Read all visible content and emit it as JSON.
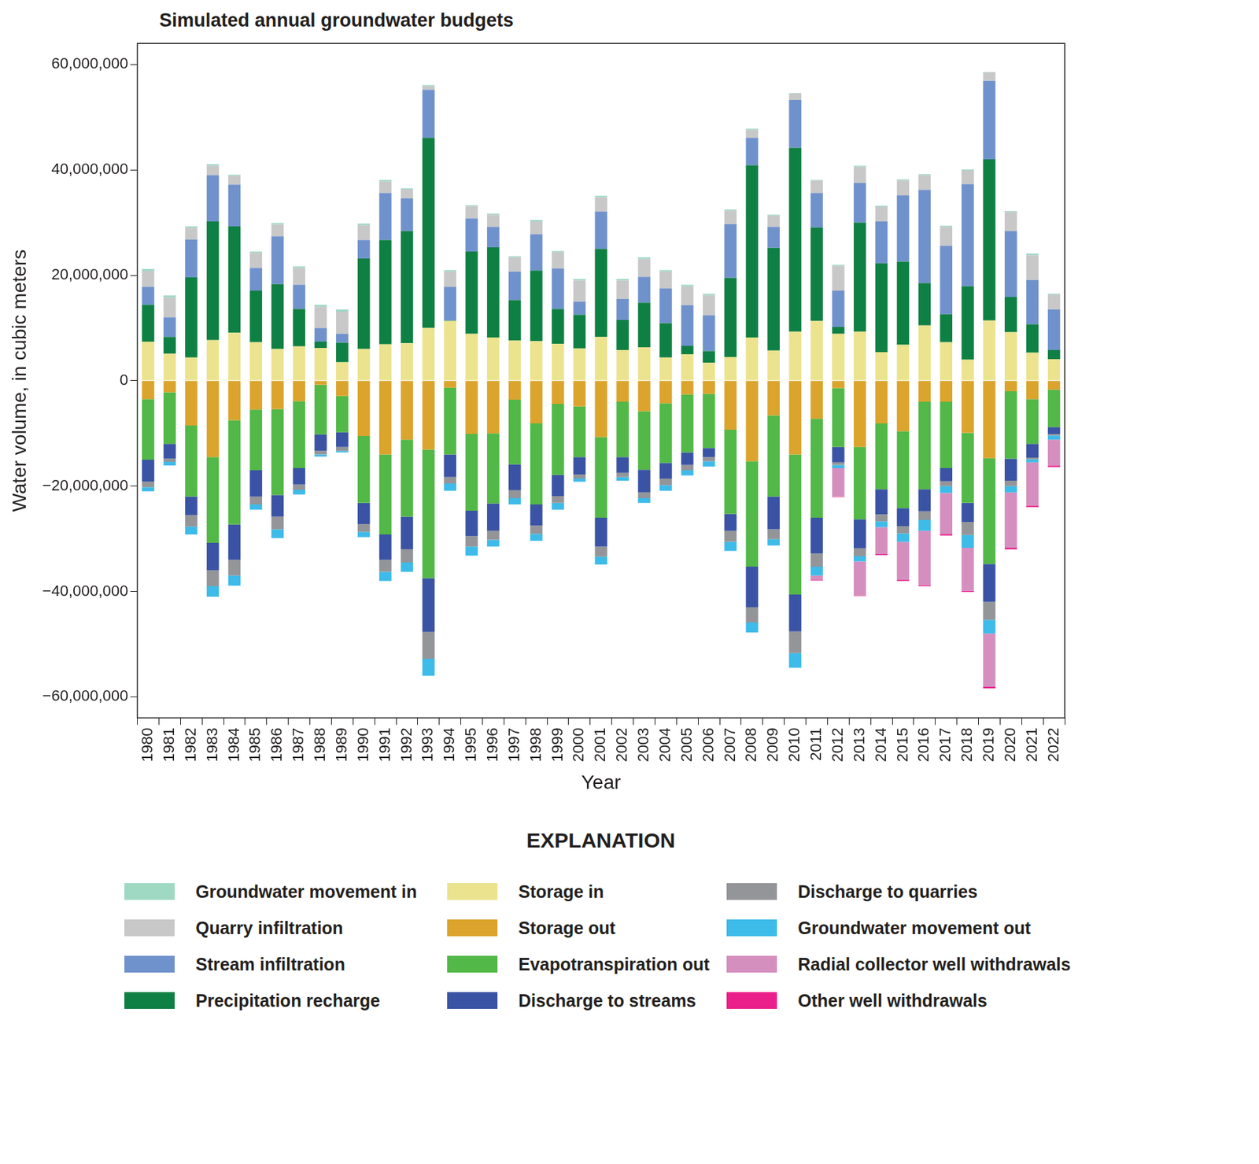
{
  "chart_data": {
    "type": "bar",
    "title": "Simulated annual groundwater budgets",
    "x_label": "Year",
    "y_label": "Water volume, in cubic meters",
    "legend_title": "EXPLANATION",
    "legend": "bottom",
    "stacked": true,
    "grid": false,
    "ylim": [
      -64000000,
      64000000
    ],
    "yticks": [
      {
        "value": -60000000,
        "label": "−60,000,000"
      },
      {
        "value": -40000000,
        "label": "−40,000,000"
      },
      {
        "value": -20000000,
        "label": "−20,000,000"
      },
      0,
      {
        "value": 20000000,
        "label": "20,000,000"
      },
      {
        "value": 40000000,
        "label": "40,000,000"
      },
      {
        "value": 60000000,
        "label": "60,000,000"
      }
    ],
    "categories": [
      "1980",
      "1981",
      "1982",
      "1983",
      "1984",
      "1985",
      "1986",
      "1987",
      "1988",
      "1989",
      "1990",
      "1991",
      "1992",
      "1993",
      "1994",
      "1995",
      "1996",
      "1997",
      "1998",
      "1999",
      "2000",
      "2001",
      "2002",
      "2003",
      "2004",
      "2005",
      "2006",
      "2007",
      "2008",
      "2009",
      "2010",
      "2011",
      "2012",
      "2013",
      "2014",
      "2015",
      "2016",
      "2017",
      "2018",
      "2019",
      "2020",
      "2021",
      "2022"
    ],
    "series": [
      {
        "name": "Groundwater movement in",
        "color": "#9fd9c3",
        "values": [
          400000,
          400000,
          300000,
          300000,
          200000,
          300000,
          300000,
          300000,
          400000,
          400000,
          300000,
          300000,
          200000,
          200000,
          300000,
          200000,
          200000,
          200000,
          300000,
          200000,
          300000,
          300000,
          300000,
          300000,
          300000,
          300000,
          300000,
          200000,
          200000,
          200000,
          100000,
          100000,
          200000,
          200000,
          200000,
          200000,
          200000,
          200000,
          200000,
          100000,
          200000,
          300000,
          200000
        ]
      },
      {
        "name": "Quarry infiltration",
        "color": "#c8c8c8",
        "values": [
          3000000,
          3800000,
          2200000,
          1800000,
          1700000,
          2800000,
          2200000,
          3200000,
          4000000,
          4200000,
          2800000,
          2200000,
          1700000,
          700000,
          2900000,
          2300000,
          2300000,
          2700000,
          2400000,
          3100000,
          4000000,
          2700000,
          3500000,
          3400000,
          3200000,
          3600000,
          3800000,
          2600000,
          1500000,
          2100000,
          1200000,
          2400000,
          4700000,
          3100000,
          2800000,
          2800000,
          2800000,
          3600000,
          2600000,
          1600000,
          3600000,
          4700000,
          2800000
        ]
      },
      {
        "name": "Stream infiltration",
        "color": "#7092cc",
        "values": [
          3400000,
          3700000,
          7200000,
          8800000,
          7900000,
          4300000,
          9100000,
          4600000,
          2600000,
          1700000,
          3500000,
          8900000,
          6200000,
          9100000,
          6400000,
          6300000,
          3900000,
          5400000,
          6900000,
          7700000,
          2500000,
          7100000,
          4000000,
          4900000,
          6600000,
          7700000,
          6800000,
          10200000,
          5200000,
          4000000,
          9100000,
          6500000,
          6900000,
          7500000,
          7900000,
          12600000,
          17700000,
          13000000,
          19400000,
          14900000,
          12500000,
          8400000,
          7700000
        ]
      },
      {
        "name": "Precipitation recharge",
        "color": "#0f8043",
        "values": [
          7000000,
          3200000,
          15200000,
          22500000,
          20200000,
          9800000,
          12300000,
          7100000,
          1200000,
          3700000,
          17200000,
          19800000,
          21300000,
          36100000,
          100000,
          15600000,
          17100000,
          7700000,
          13400000,
          6600000,
          6400000,
          16700000,
          5700000,
          8500000,
          6500000,
          1600000,
          2200000,
          15000000,
          32700000,
          19500000,
          34900000,
          17800000,
          1300000,
          20700000,
          16900000,
          15800000,
          8000000,
          5300000,
          13900000,
          30600000,
          6700000,
          5400000,
          1700000
        ]
      },
      {
        "name": "Storage in",
        "color": "#ebe38e",
        "values": [
          7400000,
          5100000,
          4400000,
          7700000,
          9100000,
          7300000,
          6000000,
          6500000,
          6200000,
          3500000,
          6000000,
          6900000,
          7100000,
          10000000,
          11300000,
          8900000,
          8200000,
          7600000,
          7500000,
          7000000,
          6100000,
          8300000,
          5800000,
          6300000,
          4400000,
          5000000,
          3400000,
          4500000,
          8200000,
          5700000,
          9300000,
          11300000,
          8900000,
          9300000,
          5400000,
          6800000,
          10500000,
          7300000,
          4000000,
          11400000,
          9200000,
          5300000,
          4100000
        ]
      },
      {
        "name": "Storage out",
        "color": "#dba42c",
        "values": [
          -3500000,
          -2200000,
          -8500000,
          -14500000,
          -7500000,
          -5500000,
          -5400000,
          -3900000,
          -800000,
          -2900000,
          -10500000,
          -14000000,
          -11200000,
          -13100000,
          -1300000,
          -10100000,
          -10000000,
          -3600000,
          -8100000,
          -4400000,
          -4900000,
          -10700000,
          -4000000,
          -5800000,
          -4300000,
          -2600000,
          -2500000,
          -9300000,
          -15300000,
          -6600000,
          -14000000,
          -7200000,
          -1400000,
          -12600000,
          -8100000,
          -9600000,
          -4000000,
          -4000000,
          -9900000,
          -14700000,
          -2000000,
          -3500000,
          -1700000
        ]
      },
      {
        "name": "Evapotranspiration out",
        "color": "#52b847",
        "values": [
          -11500000,
          -9800000,
          -13500000,
          -16300000,
          -19800000,
          -11500000,
          -16300000,
          -12700000,
          -9400000,
          -6900000,
          -12700000,
          -15200000,
          -14600000,
          -24400000,
          -12700000,
          -14600000,
          -13300000,
          -12300000,
          -15400000,
          -13500000,
          -9600000,
          -15300000,
          -10500000,
          -11100000,
          -11300000,
          -11000000,
          -10300000,
          -16000000,
          -20000000,
          -15400000,
          -26600000,
          -18800000,
          -11200000,
          -13700000,
          -12500000,
          -14600000,
          -16600000,
          -12600000,
          -13300000,
          -20100000,
          -12800000,
          -8500000,
          -7100000
        ]
      },
      {
        "name": "Discharge to streams",
        "color": "#3a53a4",
        "values": [
          -4200000,
          -2800000,
          -3500000,
          -5200000,
          -6700000,
          -5000000,
          -4100000,
          -3100000,
          -3100000,
          -2800000,
          -4000000,
          -4800000,
          -6200000,
          -10200000,
          -4300000,
          -4800000,
          -5200000,
          -4900000,
          -4000000,
          -4000000,
          -3300000,
          -5500000,
          -3000000,
          -4300000,
          -3000000,
          -2400000,
          -1700000,
          -3200000,
          -7700000,
          -6200000,
          -7000000,
          -6800000,
          -2900000,
          -5500000,
          -4800000,
          -3400000,
          -4200000,
          -2500000,
          -3600000,
          -7200000,
          -4200000,
          -2600000,
          -1300000
        ]
      },
      {
        "name": "Discharge to quarries",
        "color": "#939598",
        "values": [
          -1000000,
          -600000,
          -2200000,
          -3000000,
          -3000000,
          -1500000,
          -2400000,
          -1000000,
          -700000,
          -700000,
          -1500000,
          -2300000,
          -2500000,
          -5100000,
          -1200000,
          -2000000,
          -1700000,
          -1500000,
          -1600000,
          -1300000,
          -800000,
          -1900000,
          -800000,
          -1100000,
          -1200000,
          -1000000,
          -800000,
          -2100000,
          -2900000,
          -1900000,
          -4100000,
          -2500000,
          -500000,
          -1500000,
          -1300000,
          -1400000,
          -1600000,
          -900000,
          -2500000,
          -3400000,
          -1000000,
          -300000,
          -300000
        ]
      },
      {
        "name": "Groundwater movement out",
        "color": "#3dbbe9",
        "values": [
          -800000,
          -700000,
          -1500000,
          -2000000,
          -1900000,
          -1000000,
          -1700000,
          -900000,
          -400000,
          -300000,
          -1000000,
          -1700000,
          -1800000,
          -3200000,
          -1400000,
          -1700000,
          -1300000,
          -1200000,
          -1300000,
          -1300000,
          -600000,
          -1500000,
          -700000,
          -900000,
          -1100000,
          -1000000,
          -1000000,
          -1700000,
          -1900000,
          -1200000,
          -2800000,
          -1700000,
          -600000,
          -1000000,
          -1100000,
          -1600000,
          -2100000,
          -1300000,
          -2400000,
          -2600000,
          -1200000,
          -600000,
          -800000
        ]
      },
      {
        "name": "Radial collector well withdrawals",
        "color": "#d58fbf",
        "values": [
          0,
          0,
          0,
          0,
          0,
          0,
          0,
          0,
          0,
          0,
          0,
          0,
          0,
          0,
          0,
          0,
          0,
          0,
          0,
          0,
          0,
          0,
          0,
          0,
          0,
          0,
          0,
          0,
          0,
          0,
          0,
          -800000,
          -5400000,
          -6500000,
          -5100000,
          -7200000,
          -10300000,
          -7800000,
          -8200000,
          -10100000,
          -10500000,
          -8200000,
          -4900000
        ]
      },
      {
        "name": "Other well withdrawals",
        "color": "#ea1f8a",
        "values": [
          0,
          0,
          0,
          0,
          0,
          0,
          0,
          0,
          0,
          0,
          0,
          0,
          0,
          0,
          0,
          0,
          0,
          0,
          0,
          0,
          0,
          0,
          0,
          0,
          0,
          0,
          0,
          0,
          0,
          0,
          0,
          -100000,
          -100000,
          -100000,
          -200000,
          -200000,
          -200000,
          -300000,
          -200000,
          -300000,
          -300000,
          -300000,
          -300000
        ]
      }
    ]
  }
}
